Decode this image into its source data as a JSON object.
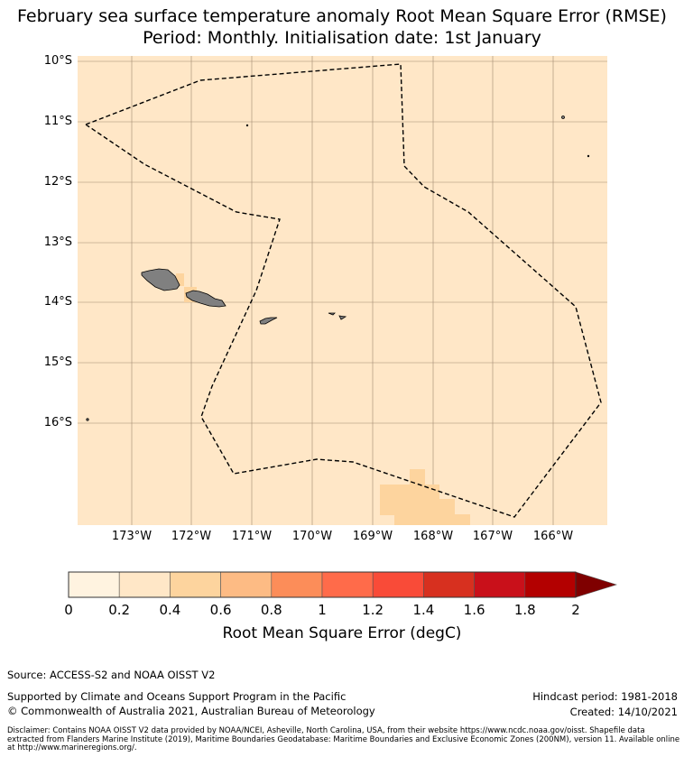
{
  "title": {
    "line1": "February sea surface temperature anomaly Root Mean Square Error (RMSE)",
    "line2": "Period: Monthly. Initialisation date: 1st January"
  },
  "map": {
    "background_color": "#ffe7c7",
    "land_color": "#808080",
    "grid_color": "#a08a70",
    "boundary_style": "dashed-black",
    "lat_labels": [
      "10°S",
      "11°S",
      "12°S",
      "13°S",
      "14°S",
      "15°S",
      "16°S"
    ],
    "lon_labels": [
      "173°W",
      "172°W",
      "171°W",
      "170°W",
      "169°W",
      "168°W",
      "167°W",
      "166°W"
    ]
  },
  "colorbar": {
    "label": "Root Mean Square Error (degC)",
    "ticks": [
      "0",
      "0.2",
      "0.4",
      "0.6",
      "0.8",
      "1",
      "1.2",
      "1.4",
      "1.6",
      "1.8",
      "2"
    ],
    "colors": [
      "#fff3e0",
      "#ffe7c7",
      "#fdd49e",
      "#fdbb84",
      "#fc8d59",
      "#ff6b4a",
      "#f94b38",
      "#d7301f",
      "#c9101a",
      "#b30000"
    ],
    "extend_color": "#7f0000"
  },
  "footer": {
    "source": "Source: ACCESS-S2 and NOAA OISST V2",
    "support": "Supported by Climate and Oceans Support Program in the Pacific",
    "copyright": "© Commonwealth of Australia 2021, Australian Bureau of Meteorology",
    "hindcast": "Hindcast period: 1981-2018",
    "created": "Created: 14/10/2021",
    "disclaimer": "Disclaimer: Contains NOAA OISST V2 data provided by NOAA/NCEI, Asheville, North Carolina, USA, from their website https://www.ncdc.noaa.gov/oisst. Shapefile data extracted from Flanders Marine Institute (2019), Maritime Boundaries Geodatabase: Maritime Boundaries and Exclusive Economic Zones (200NM), version 11. Available online at http://www.marineregions.org/."
  }
}
